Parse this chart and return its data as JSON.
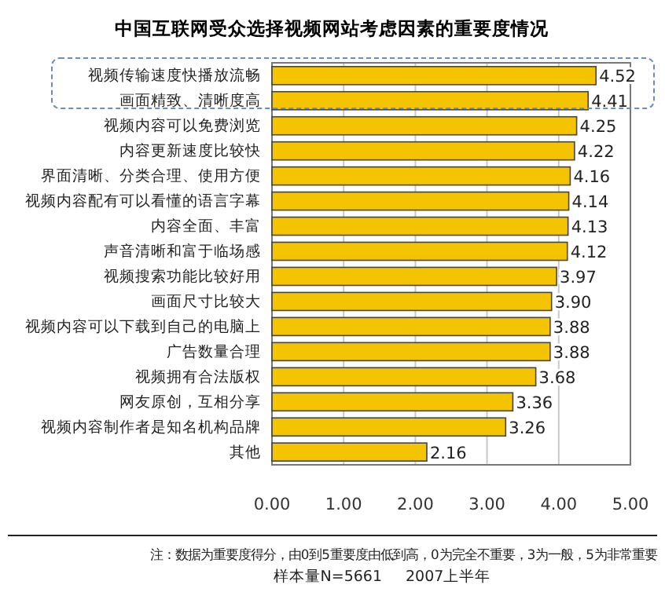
{
  "chart_data": {
    "type": "bar",
    "orientation": "horizontal",
    "title": "中国互联网受众选择视频网站考虑因素的重要度情况",
    "categories": [
      "视频传输速度快播放流畅",
      "画面精致、清晰度高",
      "视频内容可以免费浏览",
      "内容更新速度比较快",
      "界面清晰、分类合理、使用方便",
      "视频内容配有可以看懂的语言字幕",
      "内容全面、丰富",
      "声音清晰和富于临场感",
      "视频搜索功能比较好用",
      "画面尺寸比较大",
      "视频内容可以下载到自己的电脑上",
      "广告数量合理",
      "视频拥有合法版权",
      "网友原创，互相分享",
      "视频内容制作者是知名机构品牌",
      "其他"
    ],
    "values": [
      4.52,
      4.41,
      4.25,
      4.22,
      4.16,
      4.14,
      4.13,
      4.12,
      3.97,
      3.9,
      3.88,
      3.88,
      3.68,
      3.36,
      3.26,
      2.16
    ],
    "value_labels": [
      "4.52",
      "4.41",
      "4.25",
      "4.22",
      "4.16",
      "4.14",
      "4.13",
      "4.12",
      "3.97",
      "3.90",
      "3.88",
      "3.88",
      "3.68",
      "3.36",
      "3.26",
      "2.16"
    ],
    "color": "#f5c400",
    "grid": "x",
    "xlim": [
      0,
      5
    ],
    "xticks": [
      {
        "value": 0,
        "label": "0.00"
      },
      {
        "value": 1,
        "label": "1.00"
      },
      {
        "value": 2,
        "label": "2.00"
      },
      {
        "value": 3,
        "label": "3.00"
      },
      {
        "value": 4,
        "label": "4.00"
      },
      {
        "value": 5,
        "label": "5.00"
      }
    ],
    "annotations": [
      "注：数据为重要度得分，由0到5重要度由低到高，0为完全不重要，3为一般，5为非常重要",
      "样本量N=5661",
      "2007上半年"
    ]
  }
}
